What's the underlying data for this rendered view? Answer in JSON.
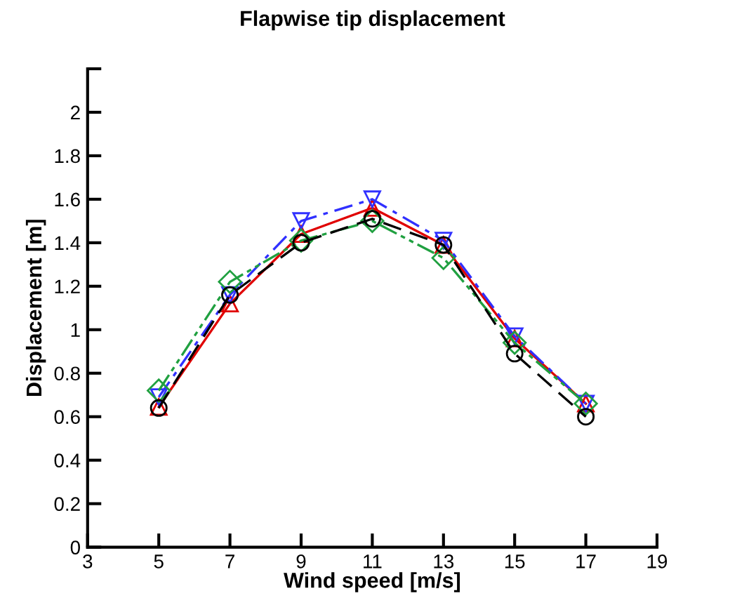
{
  "chart_data": {
    "type": "line",
    "title": "Flapwise tip displacement",
    "xlabel": "Wind speed [m/s]",
    "ylabel": "Displacement [m]",
    "x": [
      5,
      7,
      9,
      11,
      13,
      15,
      17
    ],
    "series": [
      {
        "color": "#e00000",
        "marker": "triangle",
        "line_style": "solid",
        "values": [
          0.645,
          1.12,
          1.44,
          1.56,
          1.39,
          0.96,
          0.66
        ]
      },
      {
        "color": "#3030ff",
        "marker": "triangle_down",
        "line_style": "dashdot",
        "values": [
          0.69,
          1.16,
          1.5,
          1.6,
          1.41,
          0.97,
          0.66
        ]
      },
      {
        "color": "#20a040",
        "marker": "diamond",
        "line_style": "dashdotdot",
        "values": [
          0.72,
          1.22,
          1.41,
          1.5,
          1.33,
          0.94,
          0.66
        ]
      },
      {
        "color": "#000000",
        "marker": "circle",
        "line_style": "dashed",
        "values": [
          0.64,
          1.16,
          1.4,
          1.51,
          1.39,
          0.89,
          0.6
        ]
      }
    ],
    "xlim": [
      3,
      19
    ],
    "xticks": [
      3,
      5,
      7,
      9,
      11,
      13,
      15,
      17,
      19
    ],
    "ylim": [
      0,
      2.2
    ],
    "yticks": [
      0,
      0.2,
      0.4,
      0.6,
      0.8,
      1,
      1.2,
      1.4,
      1.6,
      1.8,
      2,
      {
        "value": 2.2,
        "label": null
      }
    ],
    "grid": false,
    "legend": false
  }
}
